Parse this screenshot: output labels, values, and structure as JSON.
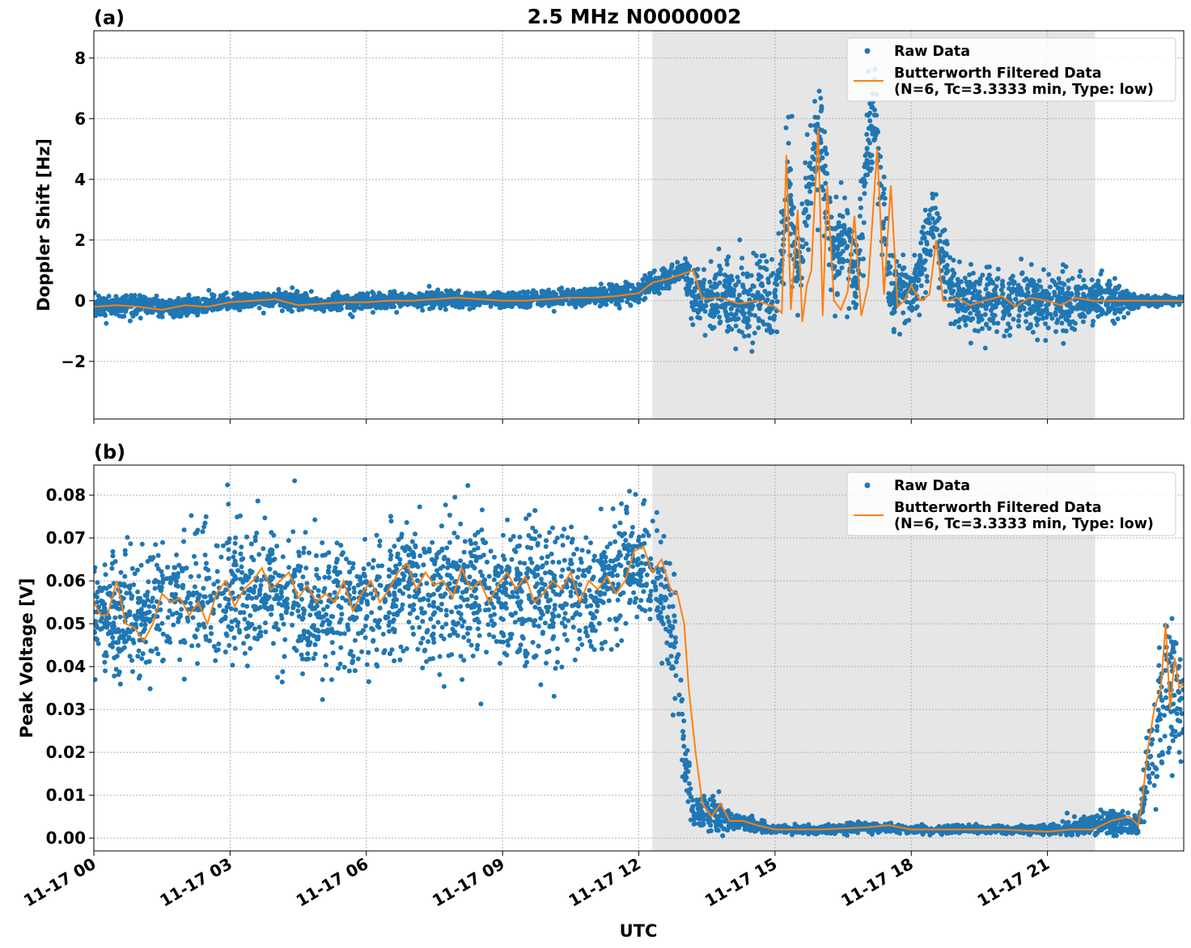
{
  "figure": {
    "title": "2.5 MHz N0000002",
    "xlabel": "UTC"
  },
  "colors": {
    "raw": "#1f77b4",
    "filtered": "#ff7f0e",
    "shade": "#e6e6e6",
    "grid": "#b0b0b0"
  },
  "legend": {
    "raw_label": "Raw Data",
    "filtered_line1": "Butterworth Filtered Data",
    "filtered_line2": "(N=6, Tc=3.3333 min, Type: low)"
  },
  "chart_data": [
    {
      "type": "scatter",
      "panel_label": "(a)",
      "ylabel": "Doppler Shift [Hz]",
      "xlim_hours": [
        0,
        24
      ],
      "ylim": [
        -3.9,
        8.9
      ],
      "yticks": [
        -2,
        0,
        2,
        4,
        6,
        8
      ],
      "ytick_labels": [
        "−2",
        "0",
        "2",
        "4",
        "6",
        "8"
      ],
      "xticks_hours": [
        0,
        3,
        6,
        9,
        12,
        15,
        18,
        21
      ],
      "xtick_labels": [
        "11-17 00",
        "11-17 03",
        "11-17 06",
        "11-17 09",
        "11-17 12",
        "11-17 15",
        "11-17 18",
        "11-17 21"
      ],
      "shaded_span_hours": [
        12.3,
        22.05
      ],
      "series": [
        {
          "name": "Raw Data",
          "x_hours": [
            0,
            1,
            1.5,
            2,
            3,
            4,
            5,
            6,
            7,
            8,
            9,
            10,
            11,
            11.5,
            12,
            12.5,
            13,
            13.2,
            14,
            15,
            15.3,
            15.5,
            15.8,
            16,
            16.3,
            16.5,
            16.8,
            17,
            17.2,
            17.5,
            18,
            18.5,
            19,
            20,
            21,
            22,
            22.5,
            23,
            24
          ],
          "center": [
            -0.2,
            -0.1,
            -0.25,
            -0.2,
            -0.05,
            0.05,
            -0.1,
            -0.05,
            0,
            0.05,
            0,
            0.05,
            0.15,
            0.2,
            0.3,
            0.7,
            1.0,
            0.1,
            0.0,
            0.0,
            4.0,
            1.0,
            4.5,
            5.5,
            1.0,
            2.5,
            0.5,
            4.5,
            6.5,
            0.5,
            0.1,
            2.5,
            0.0,
            0.0,
            0.0,
            0.0,
            0.0,
            0.0,
            0.0
          ],
          "spread": [
            0.3,
            0.3,
            0.3,
            0.3,
            0.25,
            0.25,
            0.25,
            0.25,
            0.25,
            0.25,
            0.2,
            0.25,
            0.25,
            0.3,
            0.3,
            0.3,
            0.3,
            0.9,
            1.0,
            1.1,
            1.6,
            1.4,
            1.6,
            1.8,
            1.3,
            1.4,
            1.2,
            1.8,
            1.6,
            1.2,
            1.0,
            1.2,
            1.0,
            0.9,
            0.9,
            0.7,
            0.5,
            0.2,
            0.1
          ]
        },
        {
          "name": "Butterworth Filtered Data\n(N=6, Tc=3.3333 min, Type: low)",
          "x_hours": [
            0,
            0.5,
            1,
            1.5,
            2,
            2.5,
            3,
            3.5,
            4,
            4.5,
            5,
            5.5,
            6,
            6.5,
            7,
            7.5,
            8,
            8.5,
            9,
            9.5,
            10,
            10.5,
            11,
            11.5,
            12,
            12.3,
            12.6,
            12.9,
            13.2,
            13.4,
            13.8,
            14.2,
            14.6,
            15.0,
            15.15,
            15.25,
            15.35,
            15.5,
            15.6,
            15.7,
            15.8,
            15.95,
            16.05,
            16.15,
            16.3,
            16.45,
            16.6,
            16.75,
            16.9,
            17.05,
            17.25,
            17.4,
            17.55,
            17.7,
            17.85,
            18.0,
            18.2,
            18.4,
            18.55,
            18.7,
            18.85,
            19.0,
            19.3,
            19.6,
            20.0,
            20.3,
            20.6,
            21.0,
            21.3,
            21.6,
            22.0,
            22.5,
            23.0,
            23.5,
            24.0
          ],
          "y": [
            -0.2,
            -0.15,
            -0.2,
            -0.3,
            -0.15,
            -0.2,
            -0.05,
            0.0,
            0.05,
            -0.15,
            -0.1,
            -0.05,
            -0.05,
            0.0,
            0.0,
            0.05,
            0.1,
            0.05,
            0.0,
            0.0,
            0.05,
            0.1,
            0.1,
            0.15,
            0.25,
            0.6,
            0.7,
            0.85,
            1.0,
            0.05,
            0.1,
            -0.1,
            0.0,
            -0.2,
            -0.4,
            4.8,
            -0.3,
            3.0,
            -0.7,
            0.5,
            1.0,
            5.7,
            -0.5,
            3.8,
            0.0,
            -0.3,
            0.3,
            2.8,
            -0.5,
            0.5,
            5.0,
            0.2,
            3.8,
            -0.2,
            0.0,
            0.5,
            0.0,
            0.2,
            2.0,
            0.0,
            0.0,
            0.1,
            -0.15,
            0.0,
            0.15,
            -0.2,
            0.1,
            0.0,
            -0.15,
            0.1,
            0.0,
            0.0,
            0.0,
            0.0,
            0.0
          ]
        }
      ]
    },
    {
      "type": "scatter",
      "panel_label": "(b)",
      "ylabel": "Peak Voltage [V]",
      "xlabel": "UTC",
      "xlim_hours": [
        0,
        24
      ],
      "ylim": [
        -0.003,
        0.087
      ],
      "yticks": [
        0.0,
        0.01,
        0.02,
        0.03,
        0.04,
        0.05,
        0.06,
        0.07,
        0.08
      ],
      "ytick_labels": [
        "0.00",
        "0.01",
        "0.02",
        "0.03",
        "0.04",
        "0.05",
        "0.06",
        "0.07",
        "0.08"
      ],
      "xticks_hours": [
        0,
        3,
        6,
        9,
        12,
        15,
        18,
        21
      ],
      "xtick_labels": [
        "11-17 00",
        "11-17 03",
        "11-17 06",
        "11-17 09",
        "11-17 12",
        "11-17 15",
        "11-17 18",
        "11-17 21"
      ],
      "shaded_span_hours": [
        12.3,
        22.05
      ],
      "series": [
        {
          "name": "Raw Data",
          "x_hours": [
            0,
            1,
            1.5,
            2,
            3,
            4,
            5,
            6,
            7,
            8,
            9,
            10,
            11,
            11.5,
            12,
            12.5,
            12.8,
            13.0,
            13.2,
            13.5,
            14,
            15,
            16,
            17,
            18,
            19,
            20,
            21,
            22,
            22.5,
            23,
            23.3,
            23.6,
            24
          ],
          "center": [
            0.052,
            0.05,
            0.055,
            0.056,
            0.057,
            0.057,
            0.054,
            0.055,
            0.058,
            0.058,
            0.057,
            0.056,
            0.056,
            0.062,
            0.064,
            0.058,
            0.045,
            0.02,
            0.005,
            0.006,
            0.004,
            0.002,
            0.002,
            0.0025,
            0.002,
            0.002,
            0.002,
            0.002,
            0.003,
            0.004,
            0.003,
            0.02,
            0.035,
            0.035
          ],
          "spread": [
            0.012,
            0.012,
            0.013,
            0.014,
            0.014,
            0.014,
            0.014,
            0.014,
            0.014,
            0.014,
            0.014,
            0.014,
            0.013,
            0.013,
            0.012,
            0.012,
            0.012,
            0.008,
            0.003,
            0.005,
            0.002,
            0.0008,
            0.0008,
            0.001,
            0.0008,
            0.0008,
            0.0008,
            0.001,
            0.002,
            0.003,
            0.002,
            0.01,
            0.015,
            0.015
          ]
        },
        {
          "name": "Butterworth Filtered Data\n(N=6, Tc=3.3333 min, Type: low)",
          "x_hours": [
            0,
            0.15,
            0.3,
            0.5,
            0.7,
            0.9,
            1.1,
            1.3,
            1.5,
            1.7,
            1.9,
            2.1,
            2.3,
            2.5,
            2.7,
            2.9,
            3.1,
            3.3,
            3.5,
            3.7,
            3.9,
            4.1,
            4.3,
            4.5,
            4.7,
            4.9,
            5.1,
            5.3,
            5.5,
            5.7,
            5.9,
            6.1,
            6.3,
            6.5,
            6.7,
            6.9,
            7.1,
            7.3,
            7.5,
            7.7,
            7.9,
            8.1,
            8.3,
            8.5,
            8.7,
            8.9,
            9.1,
            9.3,
            9.5,
            9.7,
            9.9,
            10.1,
            10.3,
            10.5,
            10.7,
            10.9,
            11.1,
            11.3,
            11.5,
            11.7,
            11.9,
            12.1,
            12.3,
            12.5,
            12.7,
            12.85,
            13.0,
            13.1,
            13.25,
            13.4,
            13.6,
            13.8,
            14.0,
            14.3,
            14.6,
            15.0,
            16.0,
            17.0,
            17.5,
            18.0,
            19.0,
            20.0,
            21.0,
            21.5,
            22.0,
            22.4,
            22.8,
            23.0,
            23.1,
            23.2,
            23.35,
            23.5,
            23.6,
            23.7,
            23.8,
            23.9,
            24.0
          ],
          "y": [
            0.055,
            0.052,
            0.052,
            0.06,
            0.05,
            0.049,
            0.046,
            0.05,
            0.057,
            0.055,
            0.056,
            0.052,
            0.055,
            0.05,
            0.057,
            0.06,
            0.054,
            0.058,
            0.06,
            0.063,
            0.058,
            0.06,
            0.062,
            0.056,
            0.059,
            0.055,
            0.057,
            0.055,
            0.06,
            0.053,
            0.057,
            0.06,
            0.055,
            0.058,
            0.062,
            0.064,
            0.058,
            0.062,
            0.059,
            0.06,
            0.056,
            0.063,
            0.058,
            0.06,
            0.055,
            0.059,
            0.062,
            0.058,
            0.061,
            0.055,
            0.057,
            0.06,
            0.058,
            0.062,
            0.055,
            0.06,
            0.058,
            0.061,
            0.057,
            0.06,
            0.067,
            0.068,
            0.062,
            0.065,
            0.058,
            0.057,
            0.05,
            0.035,
            0.02,
            0.008,
            0.005,
            0.008,
            0.004,
            0.004,
            0.003,
            0.002,
            0.002,
            0.0025,
            0.003,
            0.002,
            0.002,
            0.002,
            0.0015,
            0.002,
            0.002,
            0.004,
            0.005,
            0.003,
            0.01,
            0.02,
            0.03,
            0.035,
            0.05,
            0.03,
            0.042,
            0.035,
            0.036
          ]
        }
      ]
    }
  ]
}
